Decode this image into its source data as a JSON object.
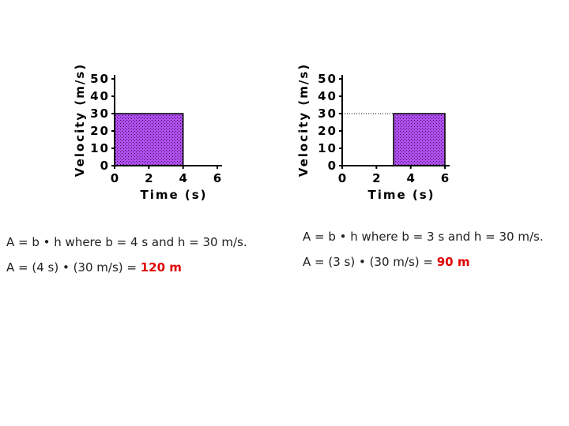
{
  "chart_data": [
    {
      "type": "area",
      "ylabel": "Velocity (m/s)",
      "xlabel": "Time (s)",
      "series": [
        {
          "x": [
            0,
            4
          ],
          "values": [
            30,
            30
          ],
          "color": "#a64ce6"
        }
      ],
      "xlim": [
        0,
        6
      ],
      "xticks": [
        0,
        2,
        4,
        6
      ],
      "ylim": [
        0,
        50
      ],
      "yticks": [
        0,
        10,
        20,
        30,
        40,
        50
      ]
    },
    {
      "type": "area",
      "ylabel": "Velocity (m/s)",
      "xlabel": "Time (s)",
      "series": [
        {
          "x": [
            3,
            6
          ],
          "values": [
            30,
            30
          ],
          "color": "#a64ce6"
        }
      ],
      "guide_y": 30,
      "xlim": [
        0,
        6
      ],
      "xticks": [
        0,
        2,
        4,
        6
      ],
      "ylim": [
        0,
        50
      ],
      "yticks": [
        0,
        10,
        20,
        30,
        40,
        50
      ]
    }
  ],
  "captions": [
    {
      "line1": "A = b • h where b = 4 s and h = 30 m/s.",
      "line2": "A = (4 s) • (30 m/s) = ",
      "result": "120 m"
    },
    {
      "line1": "A = b • h where b = 3 s and h = 30 m/s.",
      "line2": "A = (3 s) • (30 m/s) = ",
      "result": "90 m"
    }
  ]
}
